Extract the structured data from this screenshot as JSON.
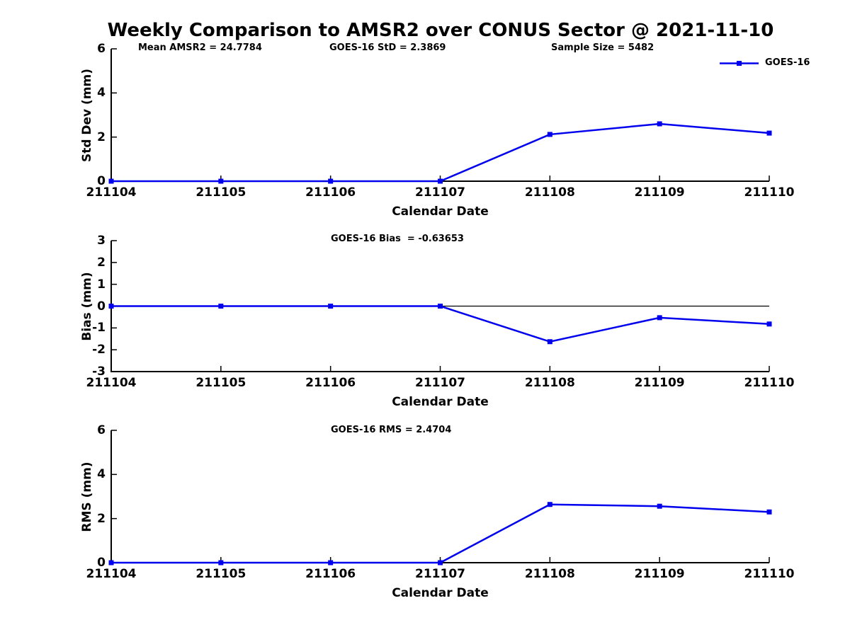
{
  "title": "Weekly Comparison to AMSR2 over CONUS Sector @ 2021-11-10",
  "colors": {
    "line": "#0000EE",
    "axis": "#000000",
    "text": "#000000",
    "background": "#FFFFFF"
  },
  "legend": {
    "label": "GOES-16",
    "position": "upper-right"
  },
  "x_axis_label": "Calendar Date",
  "categories": [
    "211104",
    "211105",
    "211106",
    "211107",
    "211108",
    "211109",
    "211110"
  ],
  "chart_data": [
    {
      "type": "line",
      "id": "std-dev",
      "annotations": [
        "Mean AMSR2 = 24.7784",
        "GOES-16 StD = 2.3869",
        "Sample Size = 5482"
      ],
      "categories": [
        "211104",
        "211105",
        "211106",
        "211107",
        "211108",
        "211109",
        "211110"
      ],
      "series": [
        {
          "name": "GOES-16",
          "values": [
            0,
            0,
            0,
            0,
            2.12,
            2.6,
            2.18
          ]
        }
      ],
      "xlabel": "Calendar Date",
      "ylabel": "Std Dev (mm)",
      "ylim": [
        0,
        6
      ],
      "yticks": [
        0,
        2,
        4,
        6
      ],
      "grid": false,
      "legend_visible": true,
      "zero_line": false
    },
    {
      "type": "line",
      "id": "bias",
      "annotations": [
        "GOES-16 Bias  = -0.63653"
      ],
      "categories": [
        "211104",
        "211105",
        "211106",
        "211107",
        "211108",
        "211109",
        "211110"
      ],
      "series": [
        {
          "name": "GOES-16",
          "values": [
            0,
            0,
            0,
            0,
            -1.63,
            -0.53,
            -0.82
          ]
        }
      ],
      "xlabel": "Calendar Date",
      "ylabel": "Bias (mm)",
      "ylim": [
        -3,
        3
      ],
      "yticks": [
        -3,
        -2,
        -1,
        0,
        1,
        2,
        3
      ],
      "grid": false,
      "legend_visible": false,
      "zero_line": true
    },
    {
      "type": "line",
      "id": "rms",
      "annotations": [
        "GOES-16 RMS = 2.4704"
      ],
      "categories": [
        "211104",
        "211105",
        "211106",
        "211107",
        "211108",
        "211109",
        "211110"
      ],
      "series": [
        {
          "name": "GOES-16",
          "values": [
            0,
            0,
            0,
            0,
            2.64,
            2.56,
            2.3
          ]
        }
      ],
      "xlabel": "Calendar Date",
      "ylabel": "RMS (mm)",
      "ylim": [
        0,
        6
      ],
      "yticks": [
        0,
        2,
        4,
        6
      ],
      "grid": false,
      "legend_visible": false,
      "zero_line": false
    }
  ]
}
